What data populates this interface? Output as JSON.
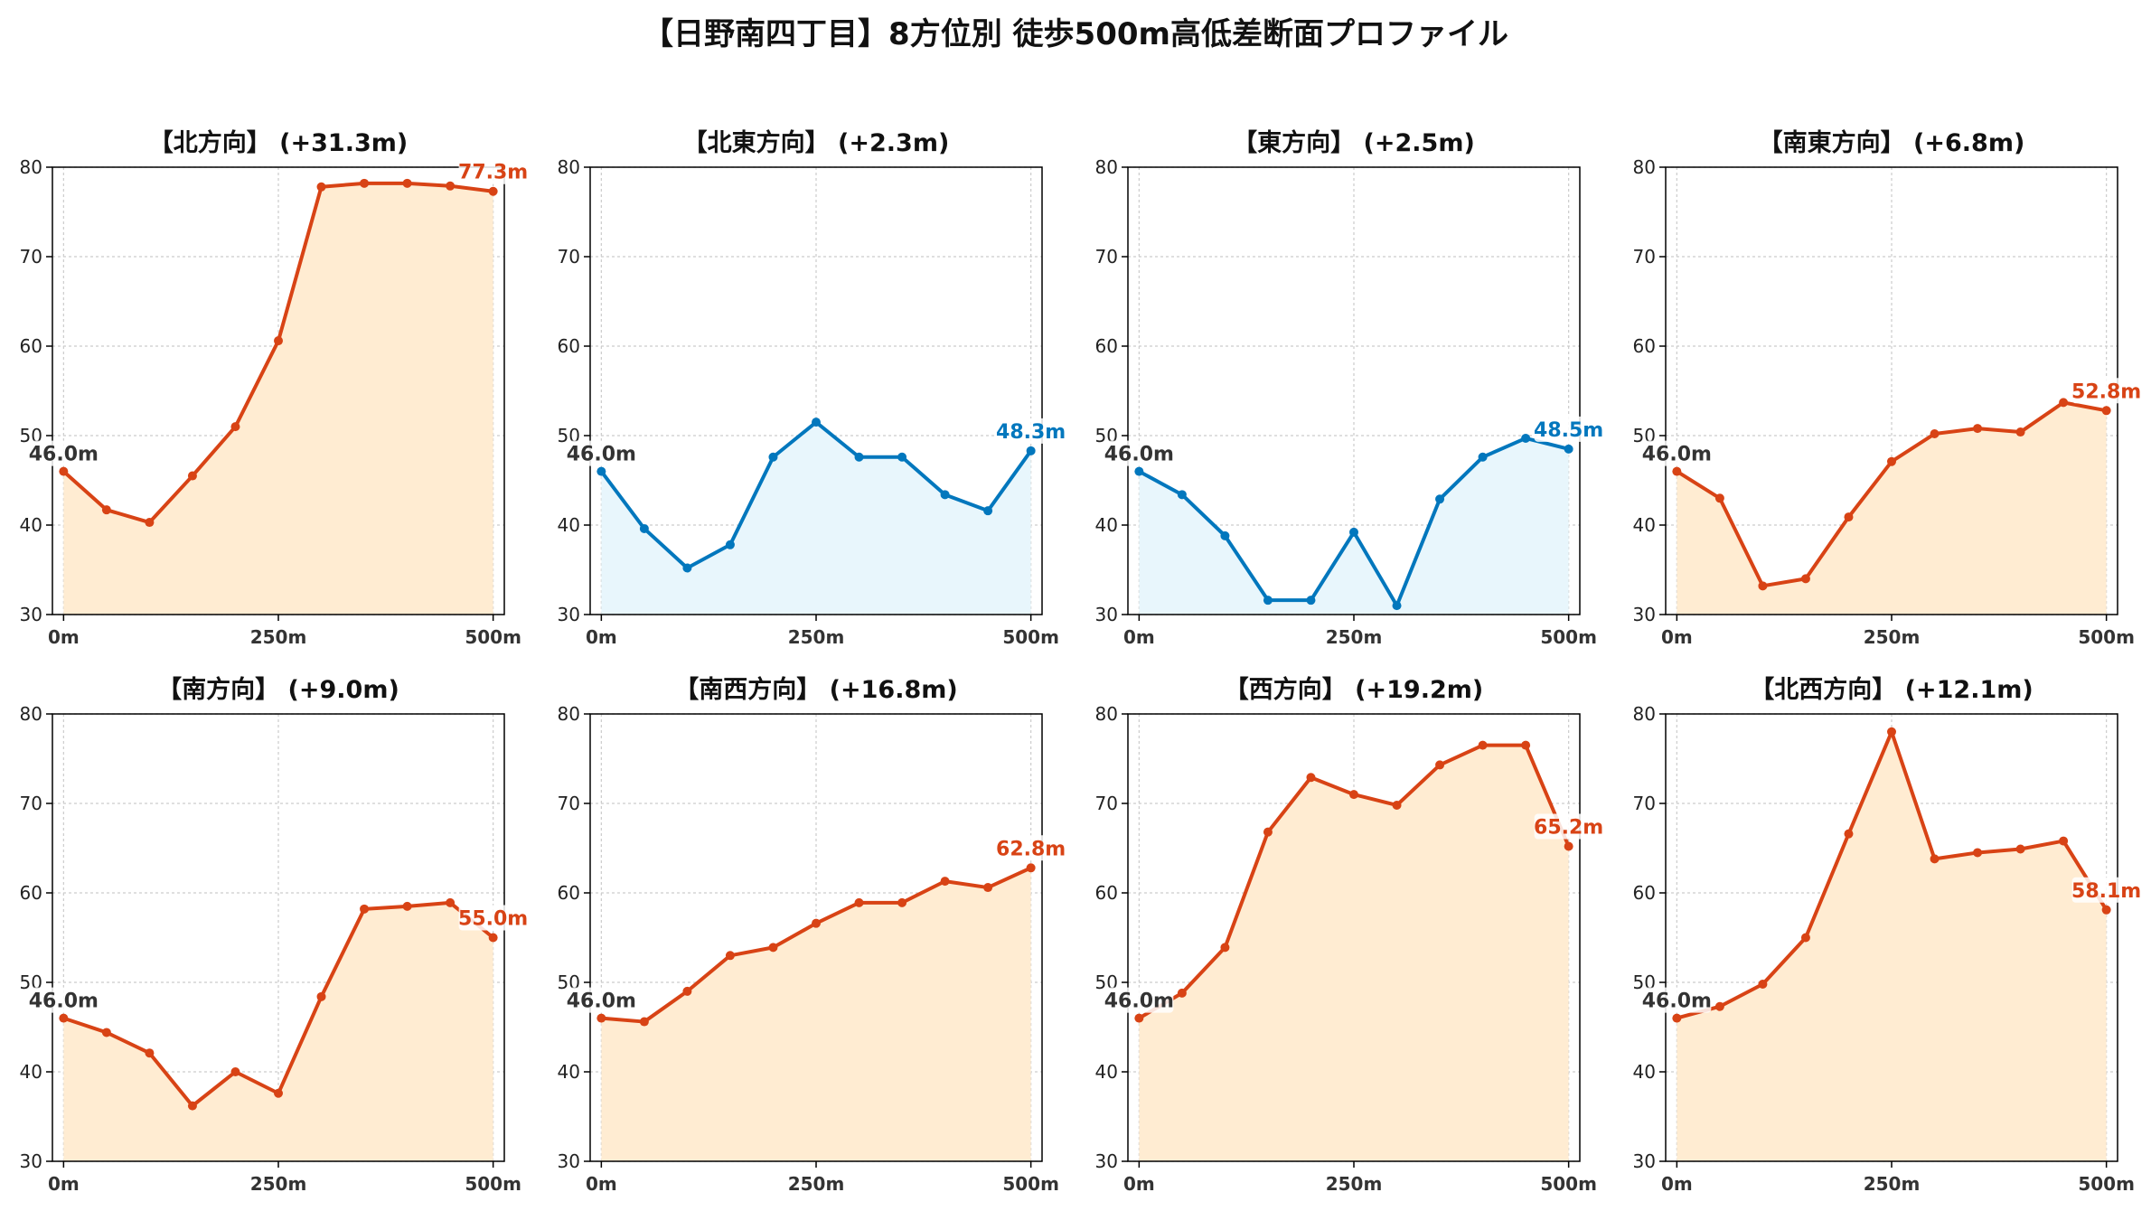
{
  "title": "【日野南四丁目】8方位別 徒歩500m高低差断面プロファイル",
  "colors": {
    "up_line": "#d84315",
    "up_fill": "#ffecd2",
    "flat_line": "#0277bd",
    "flat_fill": "#e8f6fc",
    "start_label": "#333333",
    "grid": "#cccccc"
  },
  "chart_data": [
    {
      "type": "area",
      "title": "【北方向】 (+31.3m)",
      "color_scheme": "up",
      "x": [
        0,
        50,
        100,
        150,
        200,
        250,
        300,
        350,
        400,
        450,
        500
      ],
      "values": [
        46.0,
        41.7,
        40.3,
        45.5,
        51.0,
        60.6,
        77.8,
        78.2,
        78.2,
        77.9,
        77.3
      ],
      "ylim": [
        30,
        80
      ],
      "yticks": [
        "30",
        "40",
        "50",
        "60",
        "70",
        "80"
      ],
      "xticks": [
        "0m",
        "250m",
        "500m"
      ],
      "start_label": "46.0m",
      "end_label": "77.3m",
      "grid": true
    },
    {
      "type": "area",
      "title": "【北東方向】 (+2.3m)",
      "color_scheme": "flat",
      "x": [
        0,
        50,
        100,
        150,
        200,
        250,
        300,
        350,
        400,
        450,
        500
      ],
      "values": [
        46.0,
        39.6,
        35.2,
        37.8,
        47.6,
        51.5,
        47.6,
        47.6,
        43.4,
        41.6,
        48.3
      ],
      "ylim": [
        30,
        80
      ],
      "yticks": [
        "30",
        "40",
        "50",
        "60",
        "70",
        "80"
      ],
      "xticks": [
        "0m",
        "250m",
        "500m"
      ],
      "start_label": "46.0m",
      "end_label": "48.3m",
      "grid": true
    },
    {
      "type": "area",
      "title": "【東方向】 (+2.5m)",
      "color_scheme": "flat",
      "x": [
        0,
        50,
        100,
        150,
        200,
        250,
        300,
        350,
        400,
        450,
        500
      ],
      "values": [
        46.0,
        43.4,
        38.8,
        31.6,
        31.6,
        39.2,
        31.0,
        42.9,
        47.6,
        49.7,
        48.5
      ],
      "ylim": [
        30,
        80
      ],
      "yticks": [
        "30",
        "40",
        "50",
        "60",
        "70",
        "80"
      ],
      "xticks": [
        "0m",
        "250m",
        "500m"
      ],
      "start_label": "46.0m",
      "end_label": "48.5m",
      "grid": true
    },
    {
      "type": "area",
      "title": "【南東方向】 (+6.8m)",
      "color_scheme": "up",
      "x": [
        0,
        50,
        100,
        150,
        200,
        250,
        300,
        350,
        400,
        450,
        500
      ],
      "values": [
        46.0,
        43.0,
        33.2,
        34.0,
        40.9,
        47.1,
        50.2,
        50.8,
        50.4,
        53.7,
        52.8
      ],
      "ylim": [
        30,
        80
      ],
      "yticks": [
        "30",
        "40",
        "50",
        "60",
        "70",
        "80"
      ],
      "xticks": [
        "0m",
        "250m",
        "500m"
      ],
      "start_label": "46.0m",
      "end_label": "52.8m",
      "grid": true
    },
    {
      "type": "area",
      "title": "【南方向】 (+9.0m)",
      "color_scheme": "up",
      "x": [
        0,
        50,
        100,
        150,
        200,
        250,
        300,
        350,
        400,
        450,
        500
      ],
      "values": [
        46.0,
        44.4,
        42.1,
        36.2,
        40.0,
        37.6,
        48.4,
        58.2,
        58.5,
        58.9,
        55.0
      ],
      "ylim": [
        30,
        80
      ],
      "yticks": [
        "30",
        "40",
        "50",
        "60",
        "70",
        "80"
      ],
      "xticks": [
        "0m",
        "250m",
        "500m"
      ],
      "start_label": "46.0m",
      "end_label": "55.0m",
      "grid": true
    },
    {
      "type": "area",
      "title": "【南西方向】 (+16.8m)",
      "color_scheme": "up",
      "x": [
        0,
        50,
        100,
        150,
        200,
        250,
        300,
        350,
        400,
        450,
        500
      ],
      "values": [
        46.0,
        45.6,
        49.0,
        53.0,
        53.9,
        56.6,
        58.9,
        58.9,
        61.3,
        60.6,
        62.8
      ],
      "ylim": [
        30,
        80
      ],
      "yticks": [
        "30",
        "40",
        "50",
        "60",
        "70",
        "80"
      ],
      "xticks": [
        "0m",
        "250m",
        "500m"
      ],
      "start_label": "46.0m",
      "end_label": "62.8m",
      "grid": true
    },
    {
      "type": "area",
      "title": "【西方向】 (+19.2m)",
      "color_scheme": "up",
      "x": [
        0,
        50,
        100,
        150,
        200,
        250,
        300,
        350,
        400,
        450,
        500
      ],
      "values": [
        46.0,
        48.8,
        53.9,
        66.8,
        72.9,
        71.0,
        69.8,
        74.3,
        76.5,
        76.5,
        65.2
      ],
      "ylim": [
        30,
        80
      ],
      "yticks": [
        "30",
        "40",
        "50",
        "60",
        "70",
        "80"
      ],
      "xticks": [
        "0m",
        "250m",
        "500m"
      ],
      "start_label": "46.0m",
      "end_label": "65.2m",
      "grid": true
    },
    {
      "type": "area",
      "title": "【北西方向】 (+12.1m)",
      "color_scheme": "up",
      "x": [
        0,
        50,
        100,
        150,
        200,
        250,
        300,
        350,
        400,
        450,
        500
      ],
      "values": [
        46.0,
        47.3,
        49.8,
        55.0,
        66.6,
        78.0,
        63.8,
        64.5,
        64.9,
        65.8,
        58.1
      ],
      "ylim": [
        30,
        80
      ],
      "yticks": [
        "30",
        "40",
        "50",
        "60",
        "70",
        "80"
      ],
      "xticks": [
        "0m",
        "250m",
        "500m"
      ],
      "start_label": "46.0m",
      "end_label": "58.1m",
      "grid": true
    }
  ]
}
